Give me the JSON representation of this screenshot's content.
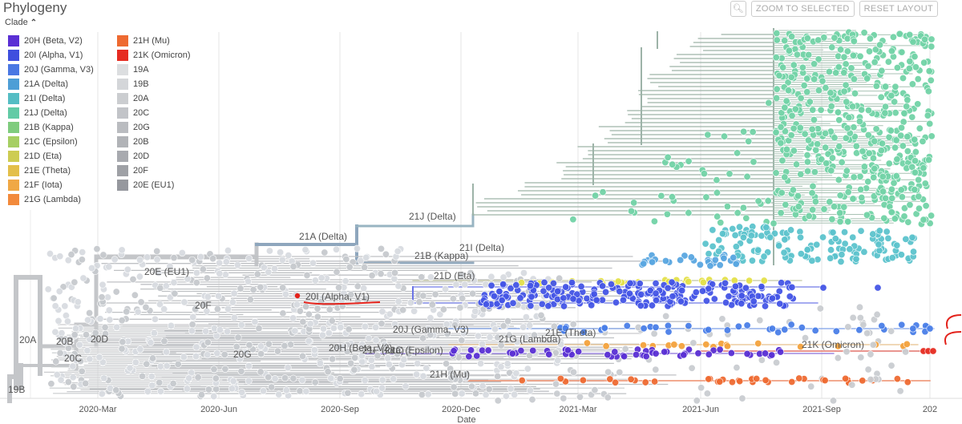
{
  "panel": {
    "title": "Phylogeny"
  },
  "toolbar": {
    "zoom_icon": "magnifier-icon",
    "zoom_selected": "ZOOM TO SELECTED",
    "reset_layout": "RESET LAYOUT"
  },
  "legend": {
    "heading": "Clade",
    "col1": [
      {
        "label": "20H (Beta, V2)",
        "color": "#5A2FD4"
      },
      {
        "label": "20I (Alpha, V1)",
        "color": "#3F4FDE"
      },
      {
        "label": "20J (Gamma, V3)",
        "color": "#4A78E3"
      },
      {
        "label": "21A (Delta)",
        "color": "#4E9ED6"
      },
      {
        "label": "21I (Delta)",
        "color": "#55BDC4"
      },
      {
        "label": "21J (Delta)",
        "color": "#62CBA6"
      },
      {
        "label": "21B (Kappa)",
        "color": "#7FCC7E"
      },
      {
        "label": "21C (Epsilon)",
        "color": "#A6CF63"
      },
      {
        "label": "21D (Eta)",
        "color": "#CDCC52"
      },
      {
        "label": "21E (Theta)",
        "color": "#E3BF4A"
      },
      {
        "label": "21F (Iota)",
        "color": "#F0A845"
      },
      {
        "label": "21G (Lambda)",
        "color": "#F28A3C"
      }
    ],
    "col2": [
      {
        "label": "21H (Mu)",
        "color": "#EE6A31"
      },
      {
        "label": "21K (Omicron)",
        "color": "#E62C22"
      },
      {
        "label": "19A",
        "color": "#DCDEE0"
      },
      {
        "label": "19B",
        "color": "#D4D6D9"
      },
      {
        "label": "20A",
        "color": "#CBCDD0"
      },
      {
        "label": "20C",
        "color": "#C2C4C8"
      },
      {
        "label": "20G",
        "color": "#BABCC0"
      },
      {
        "label": "20B",
        "color": "#B1B3B7"
      },
      {
        "label": "20D",
        "color": "#A8AAAF"
      },
      {
        "label": "20F",
        "color": "#9FA1A6"
      },
      {
        "label": "20E (EU1)",
        "color": "#96989E"
      }
    ]
  },
  "axis": {
    "title": "Date",
    "ticks": [
      "2020-Mar",
      "2020-Jun",
      "2020-Sep",
      "2020-Dec",
      "2021-Mar",
      "2021-Jun",
      "2021-Sep",
      "202"
    ]
  },
  "clades": {
    "c19B": "19B",
    "c20A": "20A",
    "c20B": "20B",
    "c20C": "20C",
    "c20D": "20D",
    "c20E": "20E (EU1)",
    "c20F": "20F",
    "c20G": "20G",
    "c20I": "20I (Alpha, V1)",
    "c20H": "20H (Beta, V2)",
    "c20J": "20J (Gamma, V3)",
    "c21A": "21A (Delta)",
    "c21J": "21J (Delta)",
    "c21I": "21I (Delta)",
    "c21B": "21B (Kappa)",
    "c21D": "21D (Eta)",
    "c21C": "21C (Epsilon)",
    "c21F": "21F (Iota)",
    "c21G": "21G (Lambda)",
    "c21E": "21E (Theta)",
    "c21K": "21K (Omicron)",
    "c21H": "21H (Mu)"
  }
}
